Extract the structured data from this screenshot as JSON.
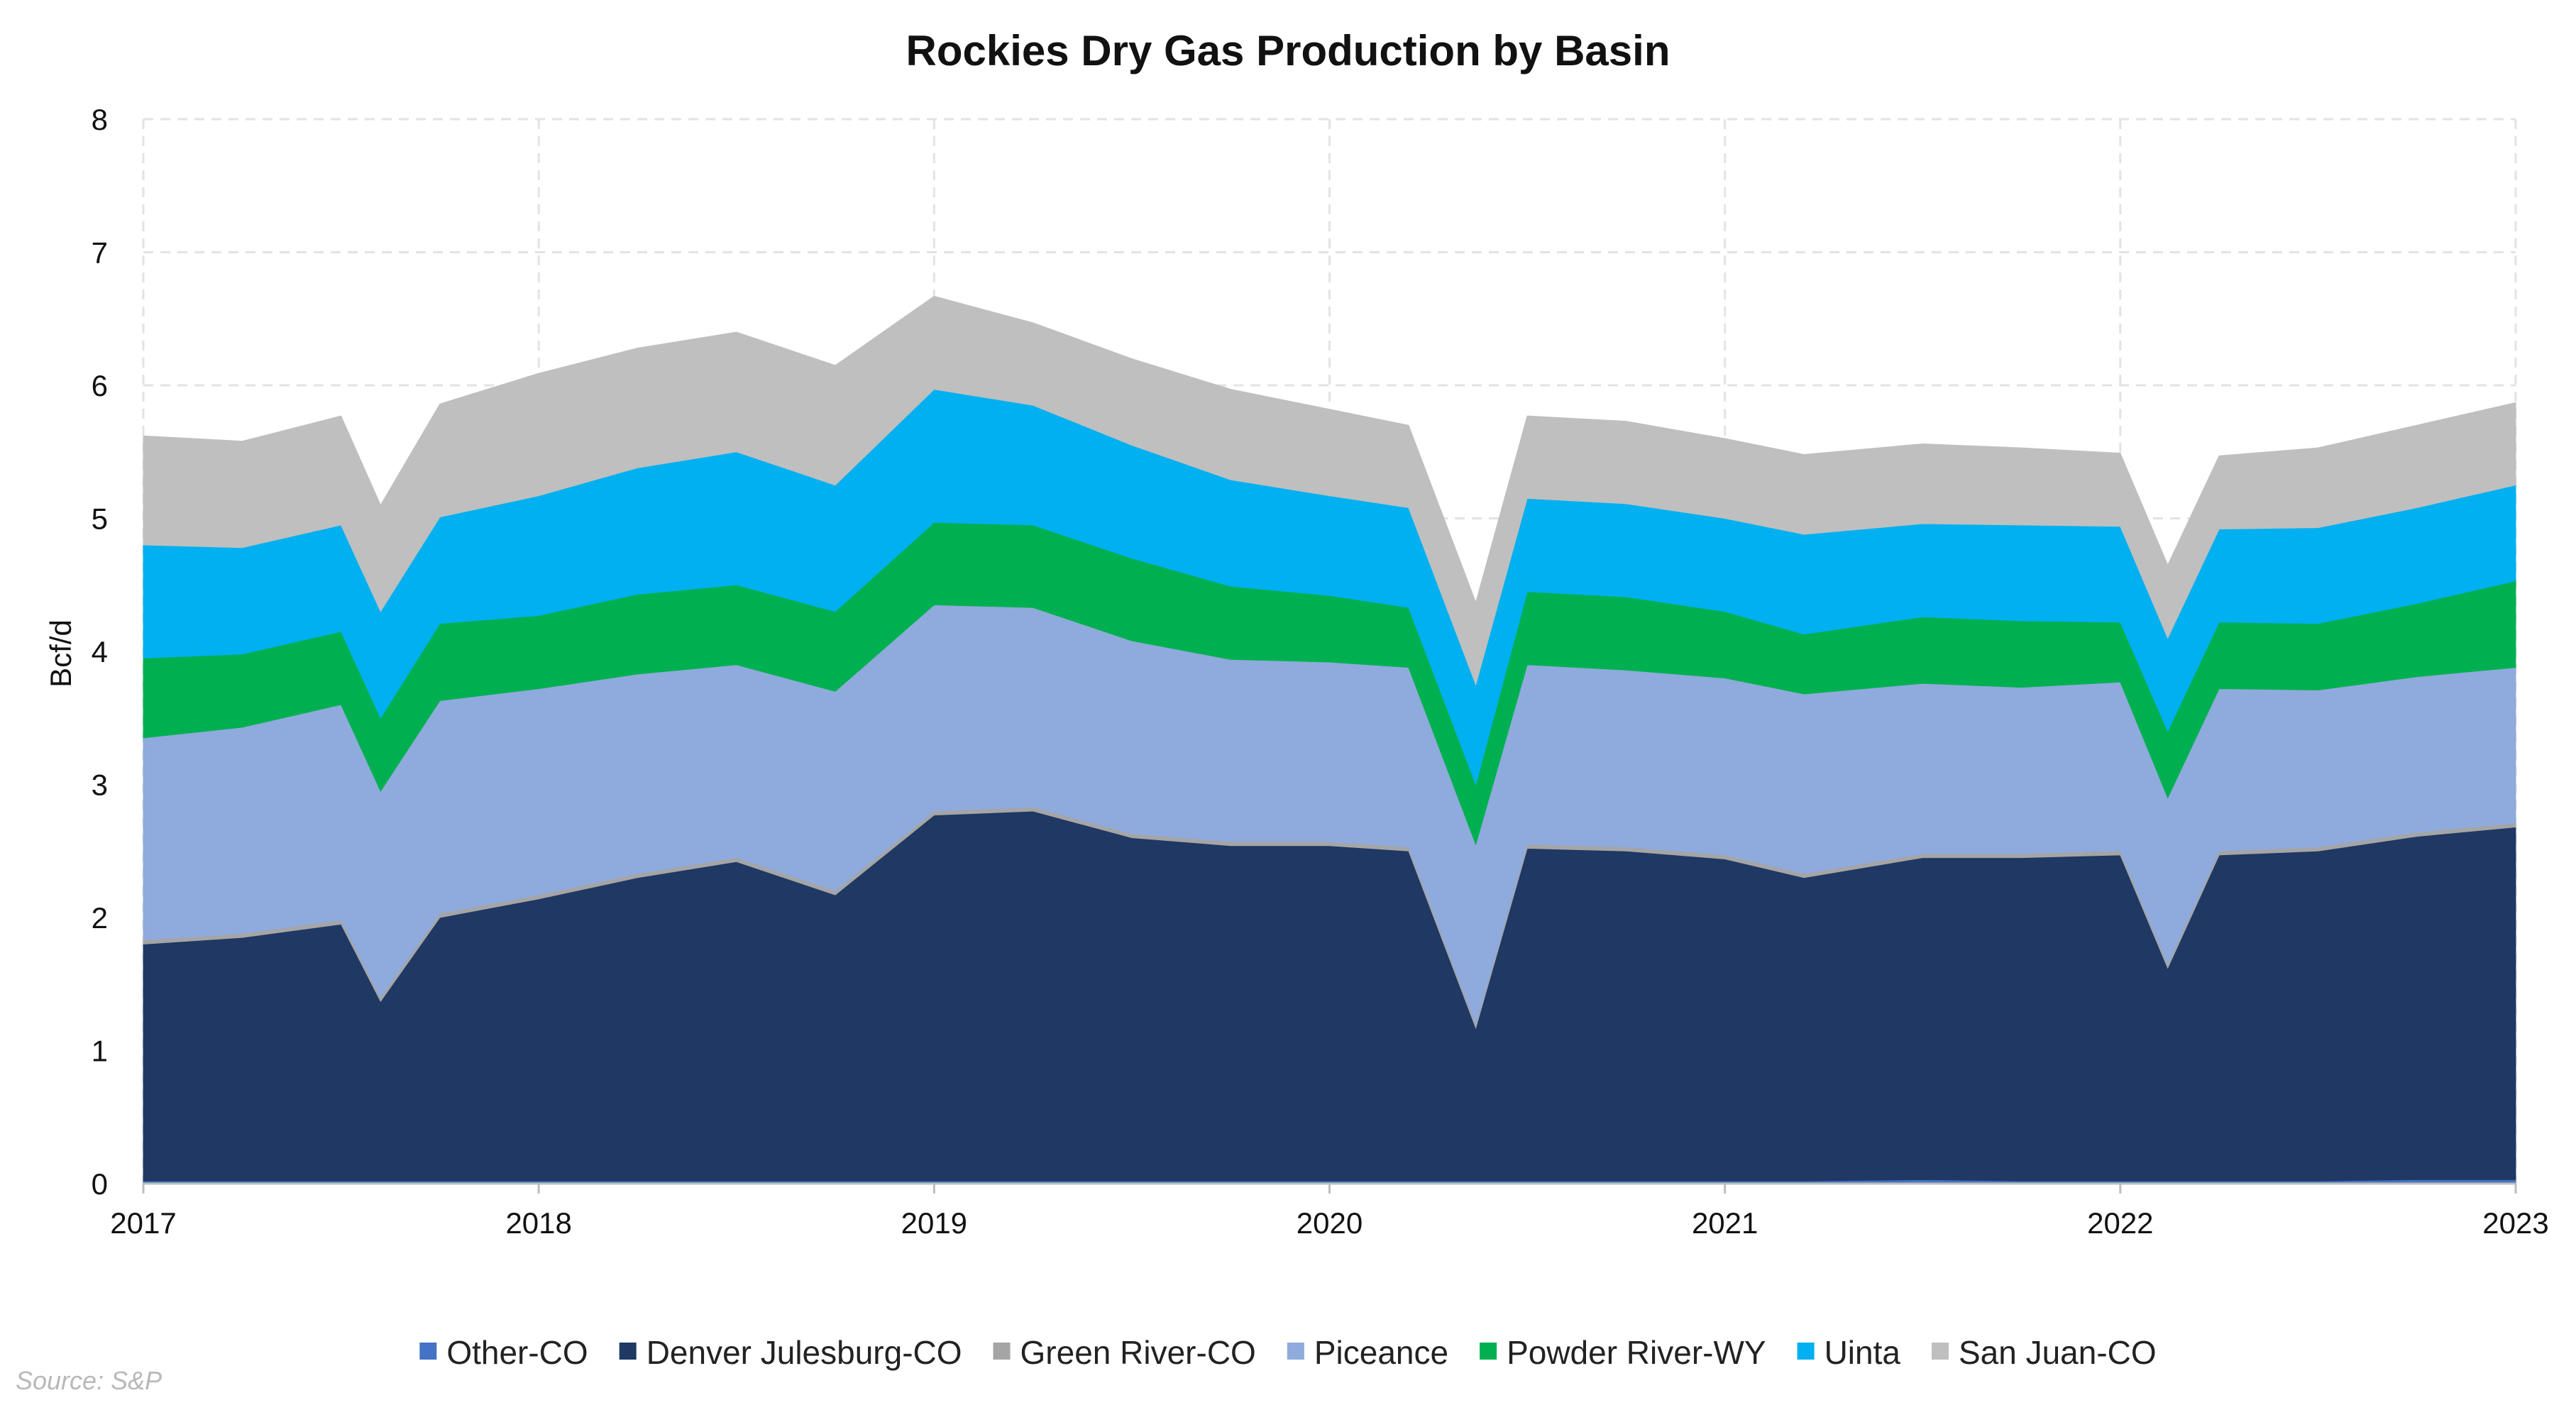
{
  "chart_data": {
    "type": "area",
    "stacked": true,
    "title": "Rockies Dry Gas Production by Basin",
    "ylabel": "Bcf/d",
    "xlabel": "",
    "ylim": [
      0,
      8
    ],
    "yticks": [
      0,
      1,
      2,
      3,
      4,
      5,
      6,
      7,
      8
    ],
    "xlim": [
      2017,
      2023
    ],
    "xticks": [
      2017,
      2018,
      2019,
      2020,
      2021,
      2022,
      2023
    ],
    "grid": true,
    "legend_position": "bottom",
    "source": "Source: S&P",
    "x": [
      2017.0,
      2017.25,
      2017.5,
      2017.6,
      2017.75,
      2018.0,
      2018.25,
      2018.5,
      2018.75,
      2019.0,
      2019.25,
      2019.5,
      2019.75,
      2020.0,
      2020.2,
      2020.37,
      2020.5,
      2020.75,
      2021.0,
      2021.2,
      2021.5,
      2021.75,
      2022.0,
      2022.12,
      2022.25,
      2022.5,
      2022.75,
      2023.0
    ],
    "series": [
      {
        "name": "Other-CO",
        "color": "#4472c4",
        "values": [
          0.02,
          0.02,
          0.02,
          0.02,
          0.02,
          0.02,
          0.02,
          0.02,
          0.02,
          0.02,
          0.02,
          0.02,
          0.02,
          0.02,
          0.02,
          0.02,
          0.02,
          0.02,
          0.02,
          0.02,
          0.03,
          0.02,
          0.02,
          0.02,
          0.02,
          0.02,
          0.03,
          0.03
        ]
      },
      {
        "name": "Denver Julesburg-CO",
        "color": "#1f3864",
        "values": [
          1.78,
          1.83,
          1.93,
          1.35,
          1.98,
          2.12,
          2.28,
          2.4,
          2.15,
          2.75,
          2.78,
          2.58,
          2.52,
          2.52,
          2.48,
          1.15,
          2.5,
          2.48,
          2.42,
          2.28,
          2.42,
          2.43,
          2.45,
          1.6,
          2.45,
          2.48,
          2.58,
          2.65
        ]
      },
      {
        "name": "Green River-CO",
        "color": "#a5a5a5",
        "values": [
          0.03,
          0.03,
          0.03,
          0.03,
          0.03,
          0.03,
          0.03,
          0.03,
          0.03,
          0.03,
          0.03,
          0.03,
          0.03,
          0.03,
          0.03,
          0.03,
          0.03,
          0.03,
          0.03,
          0.03,
          0.03,
          0.03,
          0.03,
          0.03,
          0.03,
          0.03,
          0.03,
          0.03
        ]
      },
      {
        "name": "Piceance",
        "color": "#8faadc",
        "values": [
          1.52,
          1.55,
          1.62,
          1.55,
          1.6,
          1.55,
          1.5,
          1.45,
          1.5,
          1.55,
          1.5,
          1.45,
          1.37,
          1.35,
          1.35,
          1.35,
          1.35,
          1.33,
          1.33,
          1.35,
          1.28,
          1.25,
          1.27,
          1.25,
          1.22,
          1.18,
          1.17,
          1.17
        ]
      },
      {
        "name": "Powder River-WY",
        "color": "#00b050",
        "values": [
          0.6,
          0.55,
          0.55,
          0.55,
          0.58,
          0.55,
          0.6,
          0.6,
          0.6,
          0.62,
          0.62,
          0.62,
          0.55,
          0.5,
          0.45,
          0.45,
          0.55,
          0.55,
          0.5,
          0.45,
          0.5,
          0.5,
          0.45,
          0.5,
          0.5,
          0.5,
          0.55,
          0.65
        ]
      },
      {
        "name": "Uinta",
        "color": "#00b0f0",
        "values": [
          0.85,
          0.8,
          0.8,
          0.8,
          0.8,
          0.9,
          0.95,
          1.0,
          0.95,
          1.0,
          0.9,
          0.85,
          0.8,
          0.75,
          0.75,
          0.75,
          0.7,
          0.7,
          0.7,
          0.75,
          0.7,
          0.72,
          0.72,
          0.7,
          0.7,
          0.72,
          0.72,
          0.72
        ]
      },
      {
        "name": "San Juan-CO",
        "color": "#bfbfbf",
        "values": [
          0.82,
          0.8,
          0.82,
          0.8,
          0.85,
          0.92,
          0.9,
          0.9,
          0.9,
          0.7,
          0.62,
          0.65,
          0.68,
          0.65,
          0.62,
          0.62,
          0.62,
          0.62,
          0.6,
          0.6,
          0.6,
          0.58,
          0.55,
          0.55,
          0.55,
          0.6,
          0.62,
          0.62
        ]
      }
    ]
  }
}
